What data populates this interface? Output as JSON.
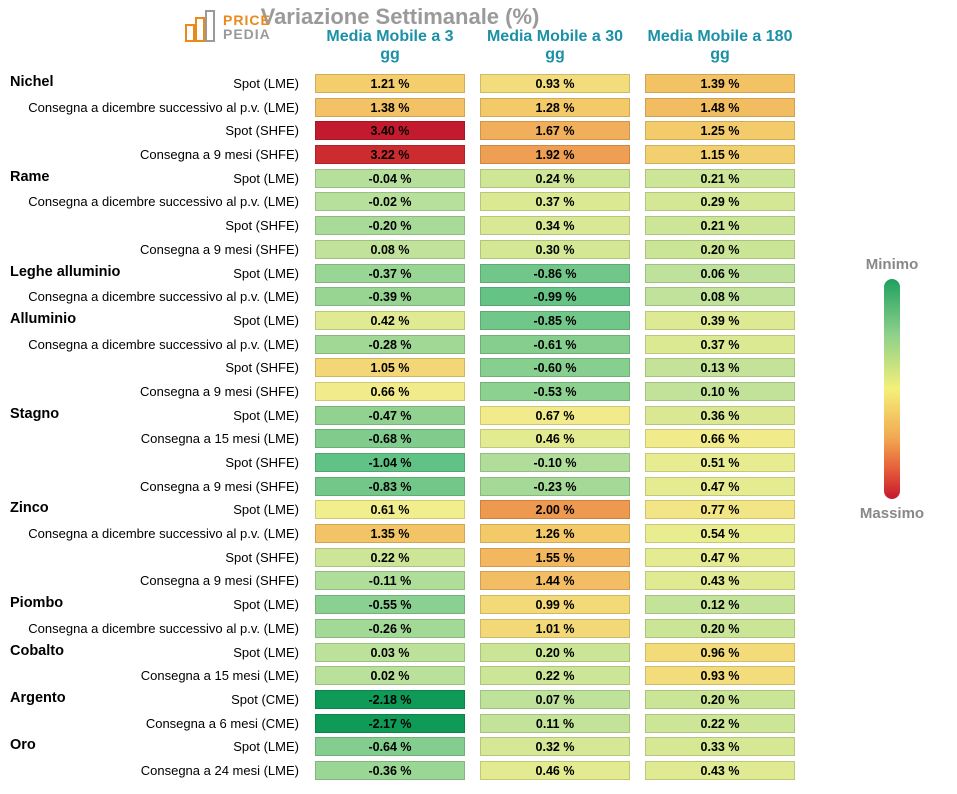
{
  "title": "Variazione Settimanale (%)",
  "logo": {
    "line1": "PRICE",
    "line2": "PEDIA"
  },
  "column_headers": [
    "Media Mobile a 3 gg",
    "Media Mobile a 30 gg",
    "Media Mobile a 180 gg"
  ],
  "legend": {
    "top": "Minimo",
    "bottom": "Massimo"
  },
  "colors": {
    "title": "#9a9a9a",
    "header": "#1b90a6",
    "scale": {
      "min_hex": "#1fa060",
      "mid_hex": "#f4f07a",
      "max_hex": "#c6172d"
    }
  },
  "value_range": {
    "min": -2.18,
    "max": 3.4
  },
  "rows": [
    {
      "category": "Nichel",
      "sub": "Spot (LME)",
      "v": [
        1.21,
        0.93,
        1.39
      ]
    },
    {
      "category": null,
      "sub": "Consegna a dicembre successivo al p.v. (LME)",
      "v": [
        1.38,
        1.28,
        1.48
      ]
    },
    {
      "category": null,
      "sub": "Spot (SHFE)",
      "v": [
        3.4,
        1.67,
        1.25
      ]
    },
    {
      "category": null,
      "sub": "Consegna a 9 mesi (SHFE)",
      "v": [
        3.22,
        1.92,
        1.15
      ]
    },
    {
      "category": "Rame",
      "sub": "Spot (LME)",
      "v": [
        -0.04,
        0.24,
        0.21
      ]
    },
    {
      "category": null,
      "sub": "Consegna a dicembre successivo al p.v. (LME)",
      "v": [
        -0.02,
        0.37,
        0.29
      ]
    },
    {
      "category": null,
      "sub": "Spot (SHFE)",
      "v": [
        -0.2,
        0.34,
        0.21
      ]
    },
    {
      "category": null,
      "sub": "Consegna a 9 mesi (SHFE)",
      "v": [
        0.08,
        0.3,
        0.2
      ]
    },
    {
      "category": "Leghe alluminio",
      "sub": "Spot (LME)",
      "v": [
        -0.37,
        -0.86,
        0.06
      ]
    },
    {
      "category": null,
      "sub": "Consegna a dicembre successivo al p.v. (LME)",
      "v": [
        -0.39,
        -0.99,
        0.08
      ]
    },
    {
      "category": "Alluminio",
      "sub": "Spot (LME)",
      "v": [
        0.42,
        -0.85,
        0.39
      ]
    },
    {
      "category": null,
      "sub": "Consegna a dicembre successivo al p.v. (LME)",
      "v": [
        -0.28,
        -0.61,
        0.37
      ]
    },
    {
      "category": null,
      "sub": "Spot (SHFE)",
      "v": [
        1.05,
        -0.6,
        0.13
      ]
    },
    {
      "category": null,
      "sub": "Consegna a 9 mesi (SHFE)",
      "v": [
        0.66,
        -0.53,
        0.1
      ]
    },
    {
      "category": "Stagno",
      "sub": "Spot (LME)",
      "v": [
        -0.47,
        0.67,
        0.36
      ]
    },
    {
      "category": null,
      "sub": "Consegna a 15 mesi (LME)",
      "v": [
        -0.68,
        0.46,
        0.66
      ]
    },
    {
      "category": null,
      "sub": "Spot (SHFE)",
      "v": [
        -1.04,
        -0.1,
        0.51
      ]
    },
    {
      "category": null,
      "sub": "Consegna a 9 mesi (SHFE)",
      "v": [
        -0.83,
        -0.23,
        0.47
      ]
    },
    {
      "category": "Zinco",
      "sub": "Spot (LME)",
      "v": [
        0.61,
        2.0,
        0.77
      ]
    },
    {
      "category": null,
      "sub": "Consegna a dicembre successivo al p.v. (LME)",
      "v": [
        1.35,
        1.26,
        0.54
      ]
    },
    {
      "category": null,
      "sub": "Spot (SHFE)",
      "v": [
        0.22,
        1.55,
        0.47
      ]
    },
    {
      "category": null,
      "sub": "Consegna a 9 mesi (SHFE)",
      "v": [
        -0.11,
        1.44,
        0.43
      ]
    },
    {
      "category": "Piombo",
      "sub": "Spot (LME)",
      "v": [
        -0.55,
        0.99,
        0.12
      ]
    },
    {
      "category": null,
      "sub": "Consegna a dicembre successivo al p.v. (LME)",
      "v": [
        -0.26,
        1.01,
        0.2
      ]
    },
    {
      "category": "Cobalto",
      "sub": "Spot (LME)",
      "v": [
        0.03,
        0.2,
        0.96
      ]
    },
    {
      "category": null,
      "sub": "Consegna a 15 mesi (LME)",
      "v": [
        0.02,
        0.22,
        0.93
      ]
    },
    {
      "category": "Argento",
      "sub": "Spot (CME)",
      "v": [
        -2.18,
        0.07,
        0.2
      ]
    },
    {
      "category": null,
      "sub": "Consegna a 6 mesi (CME)",
      "v": [
        -2.17,
        0.11,
        0.22
      ]
    },
    {
      "category": "Oro",
      "sub": "Spot (LME)",
      "v": [
        -0.64,
        0.32,
        0.33
      ]
    },
    {
      "category": null,
      "sub": "Consegna a 24 mesi (LME)",
      "v": [
        -0.36,
        0.46,
        0.43
      ]
    }
  ]
}
